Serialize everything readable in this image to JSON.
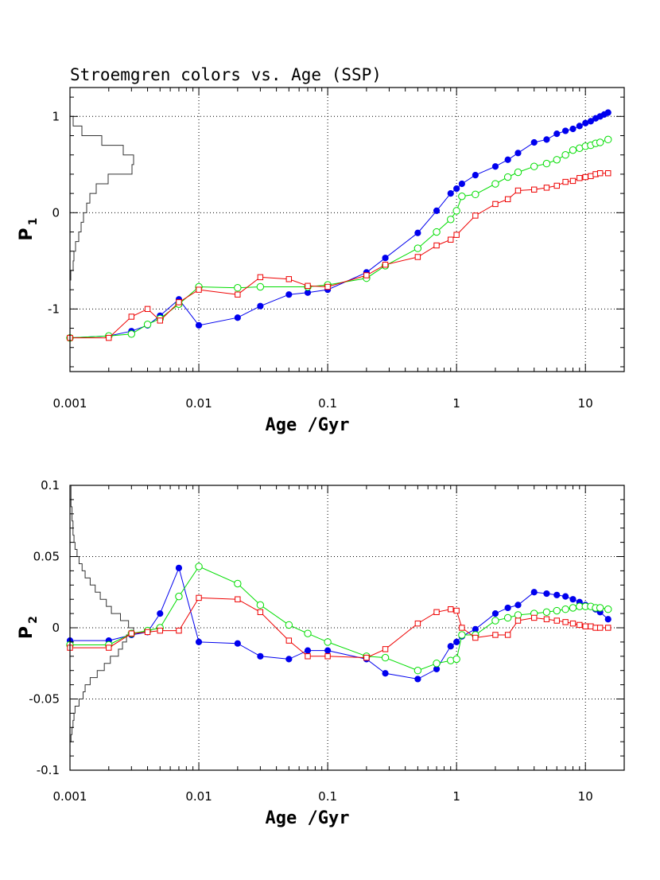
{
  "chart_title": "Stroemgren colors vs. Age (SSP)",
  "colors": {
    "blue": "#0000ee",
    "green": "#00dd00",
    "red": "#ee0000",
    "hist": "#333333",
    "grid": "#000000"
  },
  "chart_data": [
    {
      "type": "line",
      "xscale": "log",
      "xlim": [
        0.001,
        20
      ],
      "ylim": [
        -1.65,
        1.3
      ],
      "xlabel": "Age /Gyr",
      "ylabel": "P",
      "ylabel_sub": "1",
      "xticks": [
        0.001,
        0.01,
        0.1,
        1,
        10
      ],
      "xtick_labels": [
        "0.001",
        "0.01",
        "0.1",
        "1",
        "10"
      ],
      "yticks": [
        -1,
        0,
        1
      ],
      "ytick_labels": [
        "-1",
        "0",
        "1"
      ],
      "grid": true,
      "series": [
        {
          "color": "blue",
          "marker": "filled-circle",
          "x": [
            0.001,
            0.002,
            0.003,
            0.004,
            0.005,
            0.007,
            0.01,
            0.02,
            0.03,
            0.05,
            0.07,
            0.1,
            0.2,
            0.28,
            0.5,
            0.7,
            0.9,
            1.0,
            1.1,
            1.4,
            2.0,
            2.5,
            3.0,
            4.0,
            5.0,
            6.0,
            7.0,
            8.0,
            9.0,
            10.0,
            11.0,
            12.0,
            13.0,
            14.0,
            15.0
          ],
          "y": [
            -1.3,
            -1.28,
            -1.23,
            -1.17,
            -1.07,
            -0.9,
            -1.17,
            -1.09,
            -0.97,
            -0.85,
            -0.83,
            -0.8,
            -0.62,
            -0.47,
            -0.21,
            0.02,
            0.2,
            0.25,
            0.3,
            0.39,
            0.48,
            0.55,
            0.62,
            0.73,
            0.76,
            0.82,
            0.85,
            0.87,
            0.9,
            0.93,
            0.95,
            0.98,
            1.0,
            1.02,
            1.04
          ]
        },
        {
          "color": "green",
          "marker": "open-circle",
          "x": [
            0.001,
            0.002,
            0.003,
            0.004,
            0.005,
            0.007,
            0.01,
            0.02,
            0.03,
            0.07,
            0.1,
            0.2,
            0.28,
            0.5,
            0.7,
            0.9,
            1.0,
            1.1,
            1.4,
            2.0,
            2.5,
            3.0,
            4.0,
            5.0,
            6.0,
            7.0,
            8.0,
            9.0,
            10.0,
            11.0,
            12.0,
            13.0,
            15.0
          ],
          "y": [
            -1.3,
            -1.28,
            -1.26,
            -1.16,
            -1.1,
            -0.95,
            -0.77,
            -0.78,
            -0.77,
            -0.77,
            -0.75,
            -0.68,
            -0.55,
            -0.37,
            -0.2,
            -0.07,
            0.02,
            0.17,
            0.19,
            0.3,
            0.37,
            0.42,
            0.48,
            0.51,
            0.55,
            0.6,
            0.65,
            0.67,
            0.69,
            0.7,
            0.72,
            0.73,
            0.76
          ]
        },
        {
          "color": "red",
          "marker": "open-square",
          "x": [
            0.001,
            0.002,
            0.003,
            0.004,
            0.005,
            0.007,
            0.01,
            0.02,
            0.03,
            0.05,
            0.07,
            0.1,
            0.2,
            0.28,
            0.5,
            0.7,
            0.9,
            1.0,
            1.4,
            2.0,
            2.5,
            3.0,
            4.0,
            5.0,
            6.0,
            7.0,
            8.0,
            9.0,
            10.0,
            11.0,
            12.0,
            13.0,
            15.0
          ],
          "y": [
            -1.3,
            -1.3,
            -1.08,
            -1.0,
            -1.12,
            -0.93,
            -0.8,
            -0.85,
            -0.67,
            -0.69,
            -0.76,
            -0.77,
            -0.65,
            -0.54,
            -0.46,
            -0.34,
            -0.28,
            -0.23,
            -0.03,
            0.09,
            0.14,
            0.23,
            0.24,
            0.26,
            0.28,
            0.32,
            0.33,
            0.36,
            0.37,
            0.38,
            0.4,
            0.41,
            0.41
          ]
        }
      ],
      "histogram": {
        "bin_edges": [
          -1.5,
          -1.4,
          -1.3,
          -1.2,
          -1.1,
          -1.0,
          -0.9,
          -0.8,
          -0.7,
          -0.6,
          -0.5,
          -0.4,
          -0.3,
          -0.2,
          -0.1,
          0.0,
          0.1,
          0.2,
          0.3,
          0.4,
          0.5,
          0.6,
          0.7,
          0.8,
          0.9,
          1.0
        ],
        "counts": [
          0,
          0,
          0,
          0,
          0,
          0,
          0,
          0,
          1,
          4,
          5,
          7,
          11,
          14,
          17,
          21,
          25,
          33,
          48,
          78,
          80,
          67,
          40,
          15,
          4
        ]
      }
    },
    {
      "type": "line",
      "xscale": "log",
      "xlim": [
        0.001,
        20
      ],
      "ylim": [
        -0.1,
        0.1
      ],
      "xlabel": "Age /Gyr",
      "ylabel": "P",
      "ylabel_sub": "2",
      "xticks": [
        0.001,
        0.01,
        0.1,
        1,
        10
      ],
      "xtick_labels": [
        "0.001",
        "0.01",
        "0.1",
        "1",
        "10"
      ],
      "yticks": [
        -0.1,
        -0.05,
        0,
        0.05,
        0.1
      ],
      "ytick_labels": [
        "-0.1",
        "-0.05",
        "0",
        "0.05",
        "0.1"
      ],
      "grid": true,
      "series": [
        {
          "color": "blue",
          "marker": "filled-circle",
          "x": [
            0.001,
            0.002,
            0.003,
            0.004,
            0.005,
            0.007,
            0.01,
            0.02,
            0.03,
            0.05,
            0.07,
            0.1,
            0.2,
            0.28,
            0.5,
            0.7,
            0.9,
            1.0,
            1.1,
            1.4,
            2.0,
            2.5,
            3.0,
            4.0,
            5.0,
            6.0,
            7.0,
            8.0,
            9.0,
            10.0,
            11.0,
            12.0,
            13.0,
            15.0
          ],
          "y": [
            -0.009,
            -0.009,
            -0.005,
            -0.003,
            0.01,
            0.042,
            -0.01,
            -0.011,
            -0.02,
            -0.022,
            -0.016,
            -0.016,
            -0.022,
            -0.032,
            -0.036,
            -0.029,
            -0.013,
            -0.01,
            -0.006,
            -0.001,
            0.01,
            0.014,
            0.016,
            0.025,
            0.024,
            0.023,
            0.022,
            0.02,
            0.018,
            0.016,
            0.015,
            0.013,
            0.011,
            0.006
          ]
        },
        {
          "color": "green",
          "marker": "open-circle",
          "x": [
            0.001,
            0.002,
            0.003,
            0.004,
            0.005,
            0.007,
            0.01,
            0.02,
            0.03,
            0.05,
            0.07,
            0.1,
            0.2,
            0.28,
            0.5,
            0.7,
            0.9,
            1.0,
            1.1,
            1.4,
            2.0,
            2.5,
            3.0,
            4.0,
            5.0,
            6.0,
            7.0,
            8.0,
            9.0,
            10.0,
            11.0,
            12.0,
            13.0,
            15.0
          ],
          "y": [
            -0.012,
            -0.012,
            -0.004,
            -0.002,
            0.0,
            0.022,
            0.043,
            0.031,
            0.016,
            0.002,
            -0.004,
            -0.01,
            -0.02,
            -0.021,
            -0.03,
            -0.025,
            -0.023,
            -0.022,
            -0.005,
            -0.005,
            0.005,
            0.007,
            0.009,
            0.01,
            0.011,
            0.012,
            0.013,
            0.014,
            0.015,
            0.015,
            0.015,
            0.014,
            0.014,
            0.013
          ]
        },
        {
          "color": "red",
          "marker": "open-square",
          "x": [
            0.001,
            0.002,
            0.003,
            0.004,
            0.005,
            0.007,
            0.01,
            0.02,
            0.03,
            0.05,
            0.07,
            0.1,
            0.2,
            0.28,
            0.5,
            0.7,
            0.9,
            1.0,
            1.1,
            1.4,
            2.0,
            2.5,
            3.0,
            4.0,
            5.0,
            6.0,
            7.0,
            8.0,
            9.0,
            10.0,
            11.0,
            12.0,
            13.0,
            15.0
          ],
          "y": [
            -0.014,
            -0.014,
            -0.004,
            -0.003,
            -0.002,
            -0.002,
            0.021,
            0.02,
            0.011,
            -0.009,
            -0.02,
            -0.02,
            -0.021,
            -0.015,
            0.003,
            0.011,
            0.013,
            0.012,
            0.0,
            -0.007,
            -0.005,
            -0.005,
            0.005,
            0.007,
            0.006,
            0.005,
            0.004,
            0.003,
            0.002,
            0.001,
            0.001,
            0.0,
            0.0,
            0.0
          ]
        }
      ],
      "histogram": {
        "bin_edges": [
          -0.1,
          -0.095,
          -0.09,
          -0.085,
          -0.08,
          -0.075,
          -0.07,
          -0.065,
          -0.06,
          -0.055,
          -0.05,
          -0.045,
          -0.04,
          -0.035,
          -0.03,
          -0.025,
          -0.02,
          -0.015,
          -0.01,
          -0.005,
          0.0,
          0.005,
          0.01,
          0.015,
          0.02,
          0.025,
          0.03,
          0.035,
          0.04,
          0.045,
          0.05,
          0.055,
          0.06,
          0.065,
          0.07,
          0.075,
          0.08,
          0.085,
          0.09,
          0.095,
          0.1
        ],
        "counts": [
          0,
          0,
          0,
          0,
          1,
          2,
          3,
          4,
          5,
          9,
          13,
          15,
          20,
          27,
          34,
          40,
          48,
          52,
          56,
          63,
          58,
          50,
          41,
          36,
          30,
          25,
          20,
          15,
          12,
          9,
          7,
          5,
          4,
          3,
          3,
          2,
          2,
          1,
          1,
          1
        ]
      }
    }
  ]
}
